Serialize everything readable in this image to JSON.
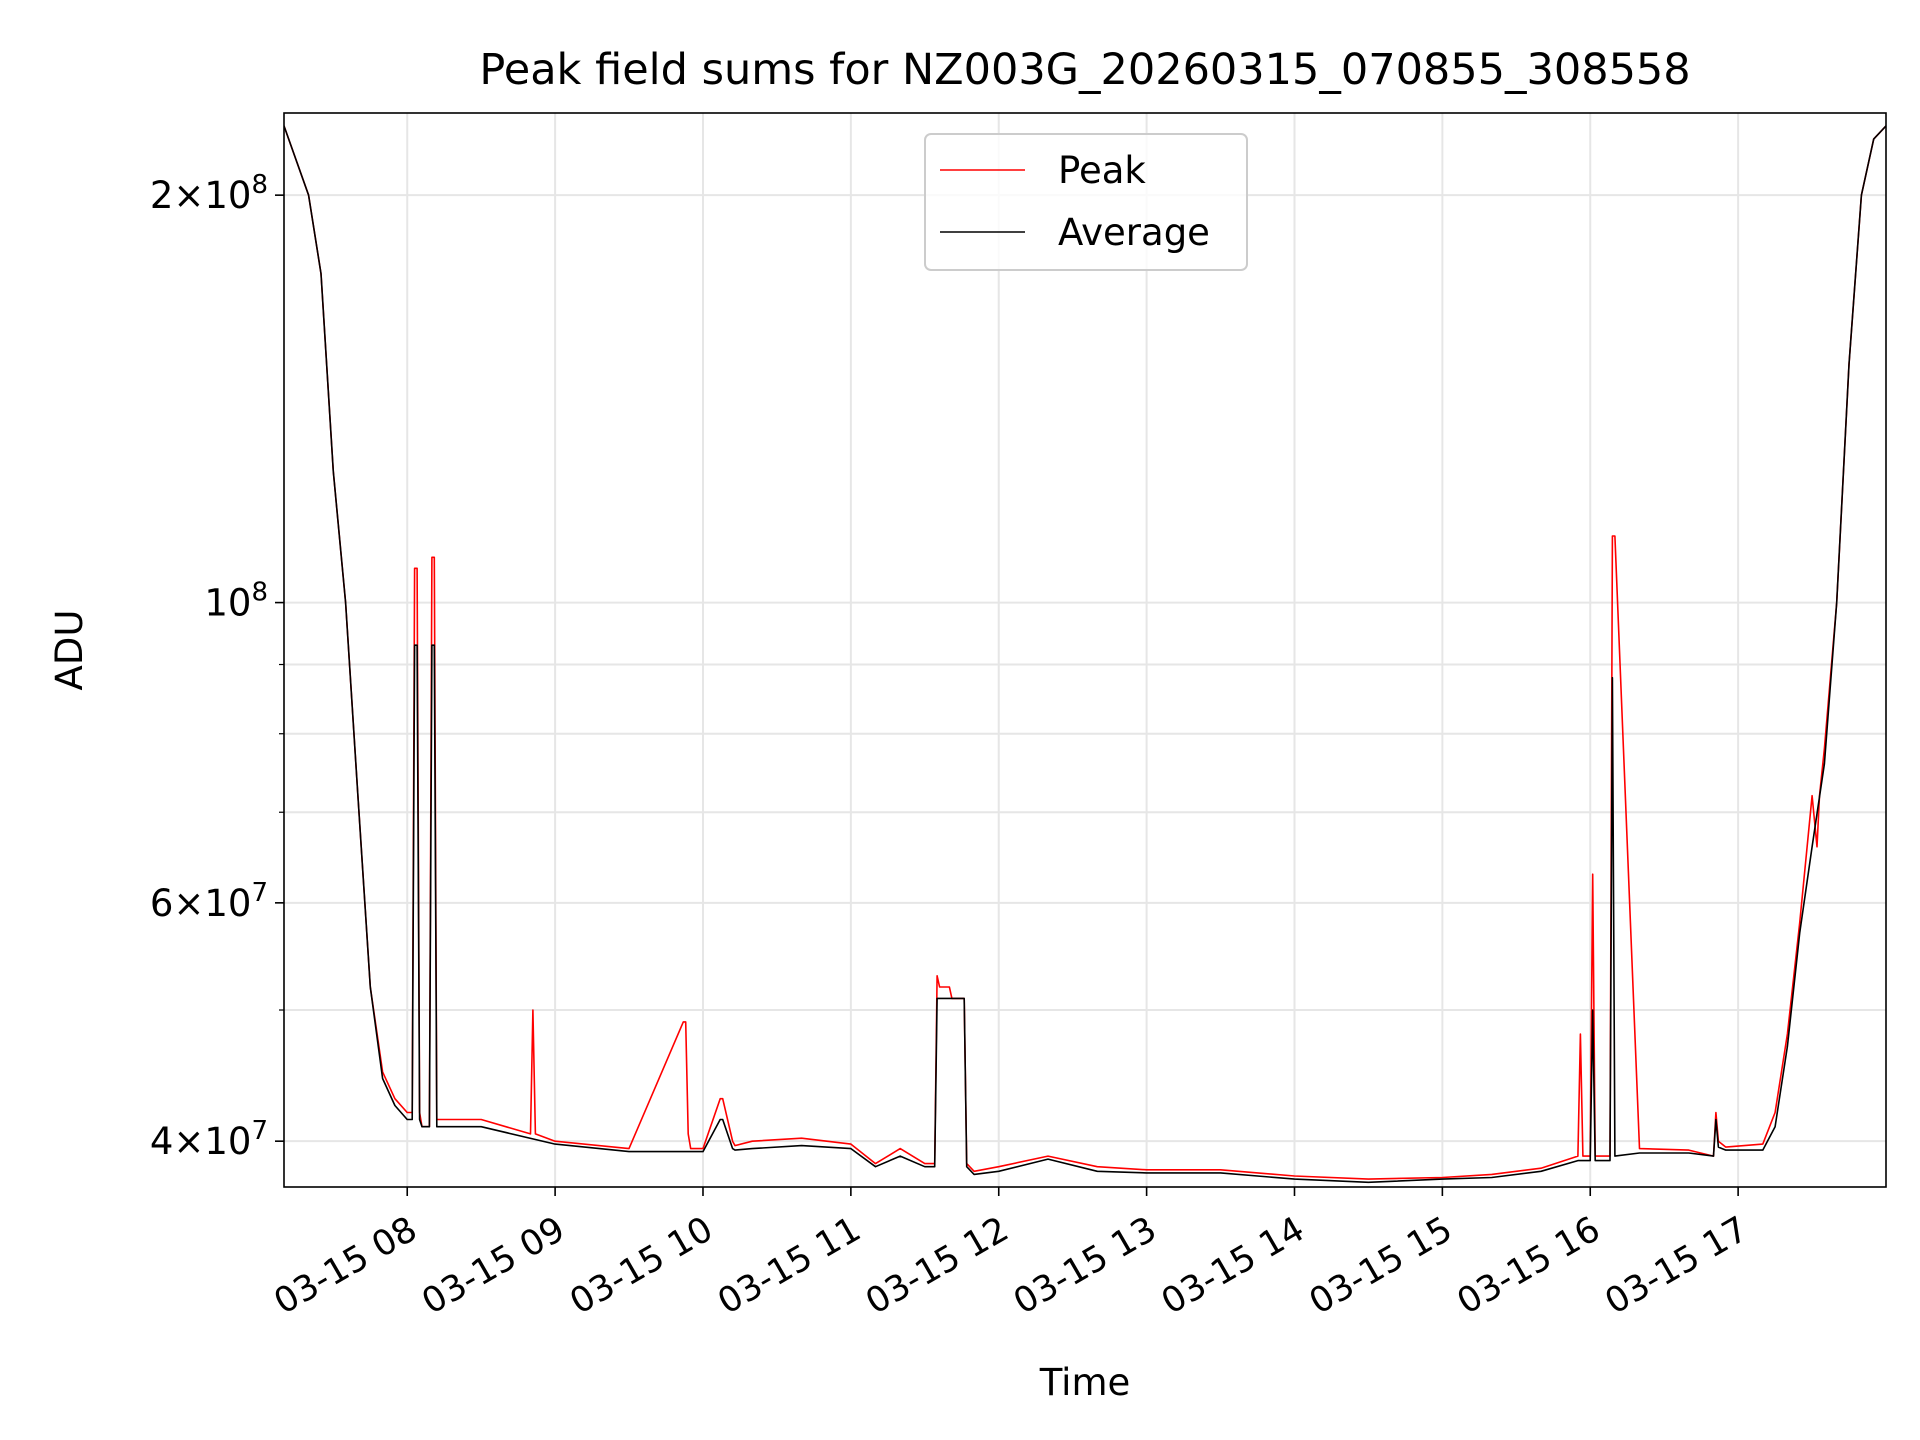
{
  "chart_data": {
    "type": "line",
    "title": "Peak field sums for NZ003G_20260315_070855_308558",
    "xlabel": "Time",
    "ylabel": "ADU",
    "yscale": "log",
    "ylim": [
      37000000,
      230000000
    ],
    "xlim": [
      "2026-03-15 07:10",
      "2026-03-15 18:00"
    ],
    "x_ticks": [
      "2026-03-15 08:00",
      "2026-03-15 09:00",
      "2026-03-15 10:00",
      "2026-03-15 11:00",
      "2026-03-15 12:00",
      "2026-03-15 13:00",
      "2026-03-15 14:00",
      "2026-03-15 15:00",
      "2026-03-15 16:00",
      "2026-03-15 17:00"
    ],
    "x_tick_labels": [
      "03-15 08",
      "03-15 09",
      "03-15 10",
      "03-15 11",
      "03-15 12",
      "03-15 13",
      "03-15 14",
      "03-15 15",
      "03-15 16",
      "03-15 17"
    ],
    "y_ticks": [
      {
        "value": 200000000,
        "mantissa": "2",
        "exponent": "8"
      },
      {
        "value": 100000000,
        "mantissa": "",
        "exponent": "8"
      },
      {
        "value": 60000000,
        "mantissa": "6",
        "exponent": "7"
      },
      {
        "value": 40000000,
        "mantissa": "4",
        "exponent": "7"
      }
    ],
    "y_minor_ticks": [
      50000000,
      70000000,
      80000000,
      90000000
    ],
    "grid": true,
    "legend_position": "upper center",
    "series": [
      {
        "name": "Peak",
        "color": "#ff0000",
        "x": [
          "2026-03-15 07:10",
          "2026-03-15 07:20",
          "2026-03-15 07:25",
          "2026-03-15 07:30",
          "2026-03-15 07:35",
          "2026-03-15 07:40",
          "2026-03-15 07:45",
          "2026-03-15 07:50",
          "2026-03-15 07:55",
          "2026-03-15 08:00",
          "2026-03-15 08:02",
          "2026-03-15 08:03",
          "2026-03-15 08:04",
          "2026-03-15 08:05",
          "2026-03-15 08:06",
          "2026-03-15 08:09",
          "2026-03-15 08:10",
          "2026-03-15 08:11",
          "2026-03-15 08:12",
          "2026-03-15 08:30",
          "2026-03-15 08:50",
          "2026-03-15 08:51",
          "2026-03-15 08:52",
          "2026-03-15 09:00",
          "2026-03-15 09:30",
          "2026-03-15 09:52",
          "2026-03-15 09:53",
          "2026-03-15 09:54",
          "2026-03-15 09:55",
          "2026-03-15 10:00",
          "2026-03-15 10:07",
          "2026-03-15 10:08",
          "2026-03-15 10:12",
          "2026-03-15 10:13",
          "2026-03-15 10:20",
          "2026-03-15 10:40",
          "2026-03-15 11:00",
          "2026-03-15 11:10",
          "2026-03-15 11:20",
          "2026-03-15 11:30",
          "2026-03-15 11:34",
          "2026-03-15 11:35",
          "2026-03-15 11:36",
          "2026-03-15 11:40",
          "2026-03-15 11:41",
          "2026-03-15 11:46",
          "2026-03-15 11:47",
          "2026-03-15 11:50",
          "2026-03-15 12:00",
          "2026-03-15 12:20",
          "2026-03-15 12:40",
          "2026-03-15 13:00",
          "2026-03-15 13:30",
          "2026-03-15 14:00",
          "2026-03-15 14:30",
          "2026-03-15 15:00",
          "2026-03-15 15:20",
          "2026-03-15 15:40",
          "2026-03-15 15:55",
          "2026-03-15 15:56",
          "2026-03-15 15:57",
          "2026-03-15 16:00",
          "2026-03-15 16:01",
          "2026-03-15 16:02",
          "2026-03-15 16:08",
          "2026-03-15 16:09",
          "2026-03-15 16:10",
          "2026-03-15 16:20",
          "2026-03-15 16:40",
          "2026-03-15 16:50",
          "2026-03-15 16:51",
          "2026-03-15 16:52",
          "2026-03-15 16:55",
          "2026-03-15 17:10",
          "2026-03-15 17:15",
          "2026-03-15 17:20",
          "2026-03-15 17:25",
          "2026-03-15 17:30",
          "2026-03-15 17:32",
          "2026-03-15 17:33",
          "2026-03-15 17:35",
          "2026-03-15 17:40",
          "2026-03-15 17:45",
          "2026-03-15 17:50",
          "2026-03-15 17:55",
          "2026-03-15 18:00"
        ],
        "y": [
          225000000,
          200000000,
          175000000,
          125000000,
          100000000,
          72000000,
          52000000,
          45000000,
          43000000,
          42000000,
          42000000,
          106000000,
          106000000,
          42000000,
          41000000,
          41000000,
          108000000,
          108000000,
          41500000,
          41500000,
          40500000,
          50000000,
          40500000,
          40000000,
          39500000,
          49000000,
          49000000,
          40500000,
          39500000,
          39500000,
          43000000,
          43000000,
          40000000,
          39700000,
          40000000,
          40200000,
          39800000,
          38500000,
          39500000,
          38500000,
          38500000,
          53000000,
          52000000,
          52000000,
          51000000,
          51000000,
          38500000,
          38000000,
          38300000,
          39000000,
          38300000,
          38100000,
          38100000,
          37700000,
          37500000,
          37600000,
          37800000,
          38200000,
          39000000,
          48000000,
          39000000,
          39000000,
          63000000,
          39000000,
          39000000,
          112000000,
          112000000,
          39500000,
          39400000,
          39000000,
          42000000,
          40000000,
          39600000,
          39800000,
          42000000,
          48000000,
          58000000,
          72000000,
          66000000,
          72000000,
          78000000,
          100000000,
          150000000,
          200000000,
          220000000,
          225000000
        ]
      },
      {
        "name": "Average",
        "color": "#000000",
        "x": [
          "2026-03-15 07:10",
          "2026-03-15 07:20",
          "2026-03-15 07:25",
          "2026-03-15 07:30",
          "2026-03-15 07:35",
          "2026-03-15 07:40",
          "2026-03-15 07:45",
          "2026-03-15 07:50",
          "2026-03-15 07:55",
          "2026-03-15 08:00",
          "2026-03-15 08:02",
          "2026-03-15 08:03",
          "2026-03-15 08:04",
          "2026-03-15 08:05",
          "2026-03-15 08:06",
          "2026-03-15 08:09",
          "2026-03-15 08:10",
          "2026-03-15 08:11",
          "2026-03-15 08:12",
          "2026-03-15 08:30",
          "2026-03-15 09:00",
          "2026-03-15 09:30",
          "2026-03-15 09:55",
          "2026-03-15 10:00",
          "2026-03-15 10:07",
          "2026-03-15 10:08",
          "2026-03-15 10:12",
          "2026-03-15 10:13",
          "2026-03-15 10:20",
          "2026-03-15 10:40",
          "2026-03-15 11:00",
          "2026-03-15 11:10",
          "2026-03-15 11:20",
          "2026-03-15 11:30",
          "2026-03-15 11:34",
          "2026-03-15 11:35",
          "2026-03-15 11:36",
          "2026-03-15 11:40",
          "2026-03-15 11:41",
          "2026-03-15 11:46",
          "2026-03-15 11:47",
          "2026-03-15 11:50",
          "2026-03-15 12:00",
          "2026-03-15 12:20",
          "2026-03-15 12:40",
          "2026-03-15 13:00",
          "2026-03-15 13:30",
          "2026-03-15 14:00",
          "2026-03-15 14:30",
          "2026-03-15 15:00",
          "2026-03-15 15:20",
          "2026-03-15 15:40",
          "2026-03-15 15:55",
          "2026-03-15 16:00",
          "2026-03-15 16:01",
          "2026-03-15 16:02",
          "2026-03-15 16:08",
          "2026-03-15 16:09",
          "2026-03-15 16:10",
          "2026-03-15 16:20",
          "2026-03-15 16:40",
          "2026-03-15 16:50",
          "2026-03-15 16:51",
          "2026-03-15 16:52",
          "2026-03-15 16:55",
          "2026-03-15 17:10",
          "2026-03-15 17:15",
          "2026-03-15 17:20",
          "2026-03-15 17:25",
          "2026-03-15 17:30",
          "2026-03-15 17:35",
          "2026-03-15 17:40",
          "2026-03-15 17:45",
          "2026-03-15 17:50",
          "2026-03-15 17:55",
          "2026-03-15 18:00"
        ],
        "y": [
          225000000,
          200000000,
          175000000,
          125000000,
          100000000,
          72000000,
          52000000,
          44500000,
          42500000,
          41500000,
          41500000,
          93000000,
          93000000,
          41500000,
          41000000,
          41000000,
          93000000,
          93000000,
          41000000,
          41000000,
          39800000,
          39300000,
          39300000,
          39300000,
          41500000,
          41500000,
          39500000,
          39400000,
          39500000,
          39700000,
          39500000,
          38300000,
          39000000,
          38300000,
          38300000,
          51000000,
          51000000,
          51000000,
          51000000,
          51000000,
          38300000,
          37800000,
          38000000,
          38800000,
          38000000,
          37900000,
          37900000,
          37500000,
          37300000,
          37500000,
          37600000,
          38000000,
          38700000,
          38700000,
          50000000,
          38700000,
          38700000,
          88000000,
          39000000,
          39200000,
          39200000,
          39000000,
          41500000,
          39600000,
          39400000,
          39400000,
          41000000,
          47000000,
          57000000,
          66000000,
          76000000,
          100000000,
          150000000,
          200000000,
          220000000,
          225000000
        ]
      }
    ]
  }
}
